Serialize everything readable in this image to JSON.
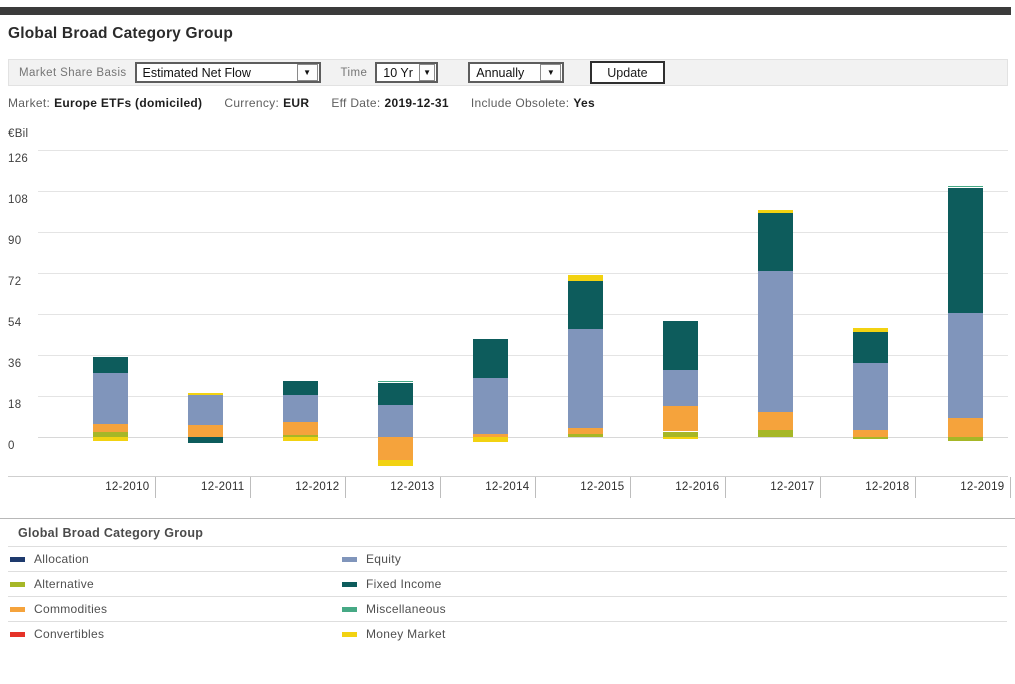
{
  "page": {
    "title": "Global Broad Category Group"
  },
  "toolbar": {
    "market_share_basis_label": "Market Share Basis",
    "market_share_basis_value": "Estimated Net Flow",
    "time_label": "Time",
    "time_value": "10 Yr",
    "frequency_value": "Annually",
    "update_label": "Update",
    "dropdown_arrow_icon": "▼"
  },
  "info": {
    "items": [
      {
        "label": "Market:",
        "value": "Europe ETFs (domiciled)"
      },
      {
        "label": "Currency:",
        "value": "EUR"
      },
      {
        "label": "Eff Date:",
        "value": "2019-12-31"
      },
      {
        "label": "Include Obsolete:",
        "value": "Yes"
      }
    ]
  },
  "chart_data": {
    "type": "bar",
    "stacked": true,
    "title": "Global Broad Category Group",
    "unit_label": "€Bil",
    "currency": "EUR",
    "categories": [
      "12-2010",
      "12-2011",
      "12-2012",
      "12-2013",
      "12-2014",
      "12-2015",
      "12-2016",
      "12-2017",
      "12-2018",
      "12-2019"
    ],
    "yticks": [
      0,
      18,
      36,
      54,
      72,
      90,
      108,
      126
    ],
    "ylim": [
      -17,
      129
    ],
    "grid": "horizontal",
    "legend_position": "bottom",
    "legend_title": "Global Broad Category Group",
    "series": [
      {
        "name": "Allocation",
        "color": "#1e3a6d",
        "values": [
          0,
          0,
          0,
          0,
          0,
          0,
          0,
          0,
          0,
          0
        ]
      },
      {
        "name": "Alternative",
        "color": "#a6b727",
        "values": [
          2.5,
          0,
          1,
          0,
          0,
          1.5,
          2.5,
          3,
          -1,
          -1.5
        ]
      },
      {
        "name": "Commodities",
        "color": "#f5a33c",
        "values": [
          3.5,
          5.5,
          5.5,
          -10,
          1.5,
          2.5,
          11,
          8,
          3,
          8.5
        ]
      },
      {
        "name": "Convertibles",
        "color": "#e53228",
        "values": [
          0,
          0,
          0,
          0,
          0,
          0,
          0,
          0,
          0,
          0
        ]
      },
      {
        "name": "Equity",
        "color": "#8095bb",
        "values": [
          22,
          13,
          12,
          14,
          24.5,
          43.5,
          16,
          62,
          29.5,
          46
        ]
      },
      {
        "name": "Fixed Income",
        "color": "#0d5c5c",
        "values": [
          7,
          -2.5,
          6,
          10,
          17,
          21,
          21.5,
          25.5,
          13.5,
          55
        ]
      },
      {
        "name": "Miscellaneous",
        "color": "#46a985",
        "values": [
          0,
          0,
          0,
          0.5,
          0,
          0,
          0,
          0,
          0,
          0.5
        ]
      },
      {
        "name": "Money Market",
        "color": "#f2d211",
        "values": [
          -1.5,
          1,
          -1.5,
          -2.5,
          -2,
          2.5,
          -1,
          1,
          2,
          0
        ]
      }
    ]
  },
  "colors": {
    "topbar": "#3b3b3b",
    "toolbar_bg": "#f2f2f2",
    "gridline": "#e4e4e4",
    "axis_line": "#cfcfcf"
  }
}
